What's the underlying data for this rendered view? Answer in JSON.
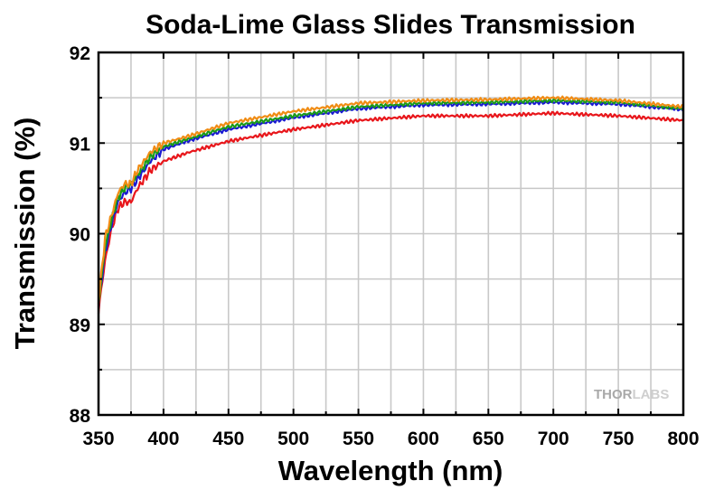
{
  "chart_data": {
    "type": "line",
    "title": "Soda-Lime Glass Slides Transmission",
    "xlabel": "Wavelength (nm)",
    "ylabel": "Transmission (%)",
    "xlim": [
      350,
      800
    ],
    "ylim": [
      88,
      92
    ],
    "xticks": [
      350,
      400,
      450,
      500,
      550,
      600,
      650,
      700,
      750,
      800
    ],
    "yticks": [
      88,
      89,
      90,
      91,
      92
    ],
    "grid": true,
    "legend": "none",
    "series": [
      {
        "color": "#e8161b",
        "x": [
          350,
          355,
          360,
          365,
          370,
          375,
          380,
          390,
          400,
          420,
          450,
          500,
          550,
          600,
          650,
          700,
          750,
          800
        ],
        "y": [
          89.15,
          89.7,
          90.05,
          90.28,
          90.35,
          90.35,
          90.5,
          90.7,
          90.8,
          90.9,
          91.02,
          91.15,
          91.25,
          91.3,
          91.3,
          91.33,
          91.3,
          91.25
        ]
      },
      {
        "color": "#1a1ad2",
        "x": [
          350,
          355,
          360,
          365,
          370,
          375,
          380,
          390,
          400,
          420,
          450,
          500,
          550,
          600,
          650,
          700,
          750,
          800
        ],
        "y": [
          89.2,
          89.8,
          90.1,
          90.35,
          90.45,
          90.5,
          90.6,
          90.8,
          90.93,
          91.03,
          91.15,
          91.28,
          91.38,
          91.42,
          91.43,
          91.45,
          91.43,
          91.37
        ]
      },
      {
        "color": "#1a9a1a",
        "x": [
          350,
          355,
          360,
          365,
          370,
          375,
          380,
          390,
          400,
          420,
          450,
          500,
          550,
          600,
          650,
          700,
          750,
          800
        ],
        "y": [
          89.22,
          89.85,
          90.15,
          90.4,
          90.5,
          90.55,
          90.65,
          90.85,
          90.96,
          91.05,
          91.18,
          91.3,
          91.4,
          91.44,
          91.45,
          91.47,
          91.45,
          91.38
        ]
      },
      {
        "color": "#f08c14",
        "x": [
          350,
          355,
          360,
          365,
          370,
          375,
          380,
          390,
          400,
          420,
          450,
          500,
          550,
          600,
          650,
          700,
          750,
          800
        ],
        "y": [
          89.25,
          89.95,
          90.2,
          90.45,
          90.55,
          90.55,
          90.7,
          90.9,
          91.0,
          91.08,
          91.22,
          91.35,
          91.44,
          91.47,
          91.48,
          91.5,
          91.47,
          91.4
        ]
      }
    ]
  },
  "watermark": {
    "text_a": "THOR",
    "text_b": "LABS"
  }
}
